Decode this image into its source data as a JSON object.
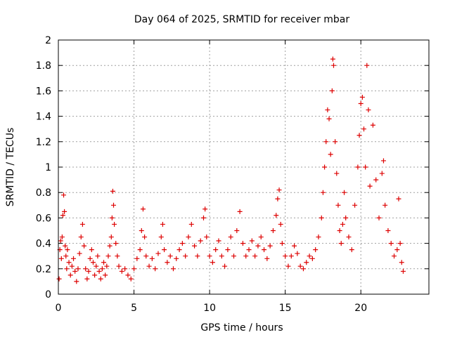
{
  "chart_data": {
    "type": "scatter",
    "title": "Day 064 of 2025, SRMTID for receiver mbar",
    "xlabel": "GPS time / hours",
    "ylabel": "SRMTID / TECUs",
    "xlim": [
      0,
      24.5
    ],
    "ylim": [
      0,
      2
    ],
    "xticks": [
      0,
      5,
      10,
      15,
      20
    ],
    "yticks": [
      0,
      0.2,
      0.4,
      0.6,
      0.8,
      1,
      1.2,
      1.4,
      1.6,
      1.8,
      2
    ],
    "xtick_labels": [
      "0",
      "5",
      "10",
      "15",
      "20"
    ],
    "ytick_labels": [
      "0",
      "0.2",
      "0.4",
      "0.6",
      "0.8",
      "1",
      "1.2",
      "1.4",
      "1.6",
      "1.8",
      "2"
    ],
    "grid": true,
    "marker": "+",
    "color": "#dd0000",
    "series": [
      {
        "name": "SRMTID",
        "points": [
          [
            0.05,
            0.12
          ],
          [
            0.1,
            0.35
          ],
          [
            0.15,
            0.42
          ],
          [
            0.2,
            0.28
          ],
          [
            0.25,
            0.45
          ],
          [
            0.3,
            0.62
          ],
          [
            0.35,
            0.78
          ],
          [
            0.4,
            0.65
          ],
          [
            0.45,
            0.38
          ],
          [
            0.5,
            0.3
          ],
          [
            0.55,
            0.2
          ],
          [
            0.6,
            0.35
          ],
          [
            0.7,
            0.25
          ],
          [
            0.8,
            0.15
          ],
          [
            0.9,
            0.22
          ],
          [
            1.0,
            0.28
          ],
          [
            1.1,
            0.18
          ],
          [
            1.2,
            0.1
          ],
          [
            1.3,
            0.2
          ],
          [
            1.4,
            0.32
          ],
          [
            1.5,
            0.45
          ],
          [
            1.6,
            0.55
          ],
          [
            1.7,
            0.38
          ],
          [
            1.8,
            0.2
          ],
          [
            1.9,
            0.12
          ],
          [
            2.0,
            0.18
          ],
          [
            2.1,
            0.28
          ],
          [
            2.2,
            0.35
          ],
          [
            2.3,
            0.25
          ],
          [
            2.4,
            0.15
          ],
          [
            2.5,
            0.22
          ],
          [
            2.6,
            0.3
          ],
          [
            2.7,
            0.18
          ],
          [
            2.8,
            0.12
          ],
          [
            2.9,
            0.2
          ],
          [
            3.0,
            0.25
          ],
          [
            3.1,
            0.15
          ],
          [
            3.2,
            0.22
          ],
          [
            3.3,
            0.3
          ],
          [
            3.4,
            0.38
          ],
          [
            3.5,
            0.45
          ],
          [
            3.55,
            0.6
          ],
          [
            3.6,
            0.81
          ],
          [
            3.65,
            0.7
          ],
          [
            3.7,
            0.55
          ],
          [
            3.8,
            0.4
          ],
          [
            3.9,
            0.3
          ],
          [
            4.0,
            0.22
          ],
          [
            4.2,
            0.18
          ],
          [
            4.4,
            0.2
          ],
          [
            4.6,
            0.15
          ],
          [
            4.8,
            0.12
          ],
          [
            5.0,
            0.2
          ],
          [
            5.2,
            0.28
          ],
          [
            5.4,
            0.35
          ],
          [
            5.5,
            0.5
          ],
          [
            5.6,
            0.67
          ],
          [
            5.7,
            0.45
          ],
          [
            5.8,
            0.3
          ],
          [
            6.0,
            0.22
          ],
          [
            6.2,
            0.28
          ],
          [
            6.4,
            0.2
          ],
          [
            6.6,
            0.32
          ],
          [
            6.8,
            0.45
          ],
          [
            6.9,
            0.55
          ],
          [
            7.0,
            0.35
          ],
          [
            7.2,
            0.25
          ],
          [
            7.4,
            0.3
          ],
          [
            7.6,
            0.2
          ],
          [
            7.8,
            0.28
          ],
          [
            8.0,
            0.35
          ],
          [
            8.2,
            0.4
          ],
          [
            8.4,
            0.3
          ],
          [
            8.6,
            0.45
          ],
          [
            8.8,
            0.55
          ],
          [
            9.0,
            0.38
          ],
          [
            9.2,
            0.3
          ],
          [
            9.4,
            0.42
          ],
          [
            9.6,
            0.6
          ],
          [
            9.7,
            0.67
          ],
          [
            9.8,
            0.45
          ],
          [
            10.0,
            0.3
          ],
          [
            10.2,
            0.25
          ],
          [
            10.4,
            0.35
          ],
          [
            10.6,
            0.42
          ],
          [
            10.8,
            0.3
          ],
          [
            11.0,
            0.22
          ],
          [
            11.2,
            0.35
          ],
          [
            11.4,
            0.45
          ],
          [
            11.6,
            0.3
          ],
          [
            11.8,
            0.5
          ],
          [
            12.0,
            0.65
          ],
          [
            12.2,
            0.4
          ],
          [
            12.4,
            0.3
          ],
          [
            12.6,
            0.35
          ],
          [
            12.8,
            0.42
          ],
          [
            13.0,
            0.3
          ],
          [
            13.2,
            0.38
          ],
          [
            13.4,
            0.45
          ],
          [
            13.6,
            0.35
          ],
          [
            13.8,
            0.28
          ],
          [
            14.0,
            0.38
          ],
          [
            14.2,
            0.5
          ],
          [
            14.4,
            0.62
          ],
          [
            14.5,
            0.75
          ],
          [
            14.6,
            0.82
          ],
          [
            14.7,
            0.55
          ],
          [
            14.8,
            0.4
          ],
          [
            15.0,
            0.3
          ],
          [
            15.2,
            0.22
          ],
          [
            15.4,
            0.3
          ],
          [
            15.6,
            0.38
          ],
          [
            15.8,
            0.32
          ],
          [
            16.0,
            0.22
          ],
          [
            16.2,
            0.2
          ],
          [
            16.4,
            0.25
          ],
          [
            16.6,
            0.3
          ],
          [
            16.8,
            0.28
          ],
          [
            17.0,
            0.35
          ],
          [
            17.2,
            0.45
          ],
          [
            17.4,
            0.6
          ],
          [
            17.5,
            0.8
          ],
          [
            17.6,
            1.0
          ],
          [
            17.7,
            1.2
          ],
          [
            17.8,
            1.45
          ],
          [
            17.9,
            1.38
          ],
          [
            18.0,
            1.1
          ],
          [
            18.1,
            1.6
          ],
          [
            18.15,
            1.85
          ],
          [
            18.2,
            1.8
          ],
          [
            18.3,
            1.2
          ],
          [
            18.4,
            0.95
          ],
          [
            18.5,
            0.7
          ],
          [
            18.6,
            0.5
          ],
          [
            18.7,
            0.4
          ],
          [
            18.8,
            0.55
          ],
          [
            18.9,
            0.8
          ],
          [
            19.0,
            0.6
          ],
          [
            19.2,
            0.45
          ],
          [
            19.4,
            0.35
          ],
          [
            19.6,
            0.7
          ],
          [
            19.8,
            1.0
          ],
          [
            19.9,
            1.25
          ],
          [
            20.0,
            1.5
          ],
          [
            20.1,
            1.55
          ],
          [
            20.2,
            1.3
          ],
          [
            20.3,
            1.0
          ],
          [
            20.4,
            1.8
          ],
          [
            20.5,
            1.45
          ],
          [
            20.6,
            0.85
          ],
          [
            20.8,
            1.33
          ],
          [
            21.0,
            0.9
          ],
          [
            21.2,
            0.6
          ],
          [
            21.4,
            0.95
          ],
          [
            21.5,
            1.05
          ],
          [
            21.6,
            0.7
          ],
          [
            21.8,
            0.5
          ],
          [
            22.0,
            0.4
          ],
          [
            22.2,
            0.3
          ],
          [
            22.4,
            0.35
          ],
          [
            22.5,
            0.75
          ],
          [
            22.6,
            0.4
          ],
          [
            22.7,
            0.25
          ],
          [
            22.8,
            0.18
          ]
        ]
      }
    ]
  }
}
